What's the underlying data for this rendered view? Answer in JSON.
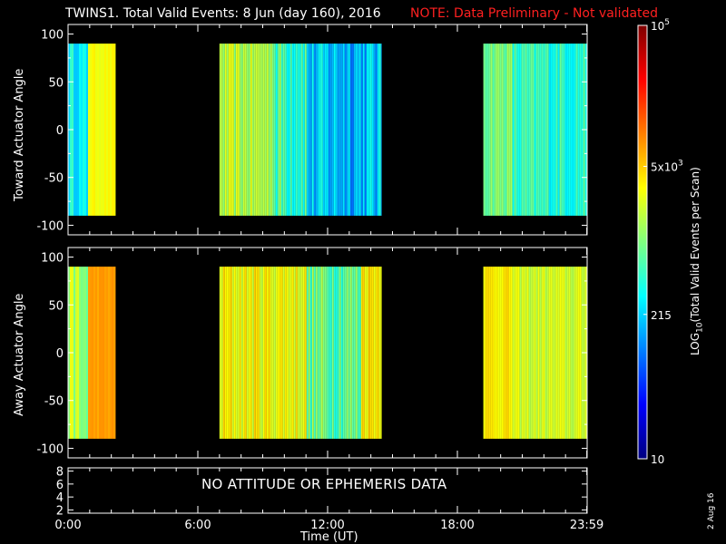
{
  "title": "TWINS1. Total Valid Events:  8 Jun (day 160), 2016",
  "note": "NOTE: Data Preliminary - Not validated",
  "no_data_message": "NO ATTITUDE OR EPHEMERIS DATA",
  "date_stamp": "2 Aug 16",
  "chart_data": [
    {
      "type": "heatmap",
      "title": "",
      "ylabel": "Toward Actuator Angle",
      "ylim": [
        -110,
        110
      ],
      "yticks": [
        "100",
        "50",
        "0",
        "-50",
        "-100"
      ],
      "xlabel": "",
      "xlim_hours": [
        0,
        24
      ],
      "data_angle_range": [
        -90,
        90
      ],
      "data_blocks_hours": [
        [
          0.0,
          2.2
        ],
        [
          7.0,
          14.5
        ],
        [
          19.2,
          24.0
        ]
      ],
      "level": "mostly cyan to light blue (~1000–2000), with yellow (~5000) near 1:00 and around 7:00–9:30"
    },
    {
      "type": "heatmap",
      "title": "",
      "ylabel": "Away Actuator Angle",
      "ylim": [
        -110,
        110
      ],
      "yticks": [
        "100",
        "50",
        "0",
        "-50",
        "-100"
      ],
      "xlabel": "",
      "xlim_hours": [
        0,
        24
      ],
      "data_angle_range": [
        -90,
        90
      ],
      "data_blocks_hours": [
        [
          0.0,
          2.2
        ],
        [
          7.0,
          14.5
        ],
        [
          19.2,
          24.0
        ]
      ],
      "level": "mostly yellow to orange (~5000–10000), with cyan stripes around 11:30–13:30"
    },
    {
      "type": "line",
      "title": "",
      "ylabel": "",
      "ylim": [
        1.5,
        8.5
      ],
      "yticks": [
        "8",
        "6",
        "4",
        "2"
      ],
      "xlabel": "Time (UT)",
      "xticks": [
        "0:00",
        "6:00",
        "12:00",
        "18:00",
        "23:59"
      ],
      "series": []
    }
  ],
  "colorbar": {
    "label": "LOG",
    "label_sub": "10",
    "label_rest": "(Total Valid Events per Scan)",
    "scale": "log",
    "range": [
      10,
      100000
    ],
    "ticks": [
      {
        "value": 100000,
        "base": "10",
        "exp": "5"
      },
      {
        "value": 5000,
        "base": "5x10",
        "exp": "3"
      },
      {
        "value": 215,
        "base": "215",
        "exp": ""
      },
      {
        "value": 10,
        "base": "10",
        "exp": ""
      }
    ],
    "colors": [
      "#00007f",
      "#0000ff",
      "#007fff",
      "#00ffff",
      "#7fff7f",
      "#ffff00",
      "#ff7f00",
      "#ff0000",
      "#7f0000"
    ]
  }
}
